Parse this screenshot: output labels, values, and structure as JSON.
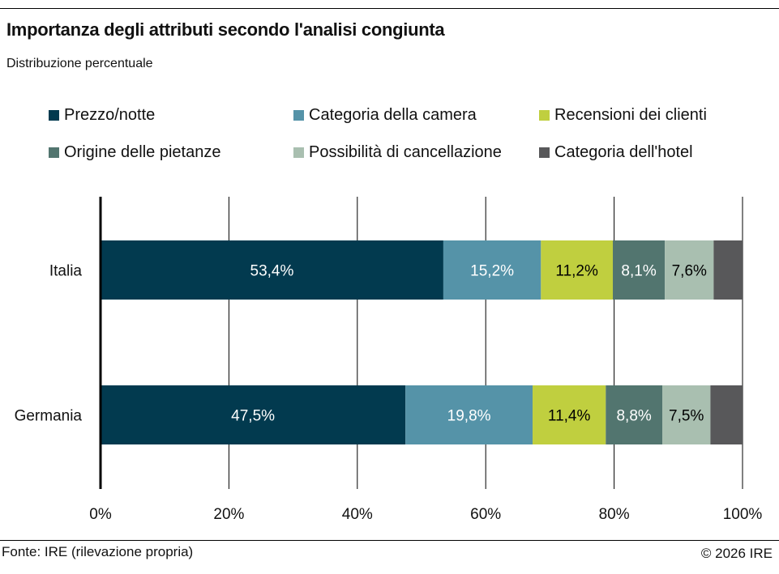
{
  "chart_data": {
    "type": "bar",
    "orientation": "horizontal",
    "stacked": true,
    "title": "Importanza degli attributi secondo l'analisi congiunta",
    "subtitle": "Distribuzione percentuale",
    "categories": [
      "Italia",
      "Germania"
    ],
    "series": [
      {
        "name": "Prezzo/notte",
        "color": "#023a4f",
        "label_color": "#ffffff",
        "values": [
          53.4,
          47.5
        ],
        "labels": [
          "53,4%",
          "47,5%"
        ]
      },
      {
        "name": "Categoria della camera",
        "color": "#5593a8",
        "label_color": "#ffffff",
        "values": [
          15.2,
          19.8
        ],
        "labels": [
          "15,2%",
          "19,8%"
        ]
      },
      {
        "name": "Recensioni dei clienti",
        "color": "#c0cf3f",
        "label_color": "#000000",
        "values": [
          11.2,
          11.4
        ],
        "labels": [
          "11,2%",
          "11,4%"
        ]
      },
      {
        "name": "Origine delle pietanze",
        "color": "#52756f",
        "label_color": "#ffffff",
        "values": [
          8.1,
          8.8
        ],
        "labels": [
          "8,1%",
          "8,8%"
        ]
      },
      {
        "name": "Possibilità di cancellazione",
        "color": "#a9bfb0",
        "label_color": "#000000",
        "values": [
          7.6,
          7.5
        ],
        "labels": [
          "7,6%",
          "7,5%"
        ]
      },
      {
        "name": "Categoria dell'hotel",
        "color": "#58585a",
        "label_color": "#ffffff",
        "values": [
          4.5,
          5.0
        ],
        "labels": [
          "",
          ""
        ]
      }
    ],
    "xlim": [
      0,
      100
    ],
    "xticks": [
      "0%",
      "20%",
      "40%",
      "60%",
      "80%",
      "100%"
    ],
    "grid": true,
    "legend": "top"
  },
  "footer": {
    "source": "Fonte: IRE (rilevazione propria)",
    "copyright": "© 2026 IRE"
  }
}
